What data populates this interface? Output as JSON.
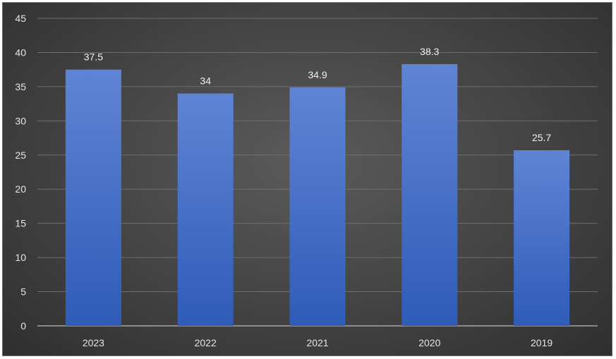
{
  "chart_data": {
    "type": "bar",
    "title": "",
    "xlabel": "",
    "ylabel": "",
    "categories": [
      "2023",
      "2022",
      "2021",
      "2020",
      "2019"
    ],
    "values": [
      37.5,
      34,
      34.9,
      38.3,
      25.7
    ],
    "data_labels": [
      "37.5",
      "34",
      "34.9",
      "38.3",
      "25.7"
    ],
    "ylim": [
      0,
      45
    ],
    "yticks": [
      0,
      5,
      10,
      15,
      20,
      25,
      30,
      35,
      40,
      45
    ],
    "grid": true,
    "legend": "none",
    "colors": {
      "bar_top": "#5f84d4",
      "bar_bottom": "#2f5cb8",
      "background": "#474747",
      "gridline": "#6e6e6e",
      "text": "#e6e6e6"
    }
  }
}
